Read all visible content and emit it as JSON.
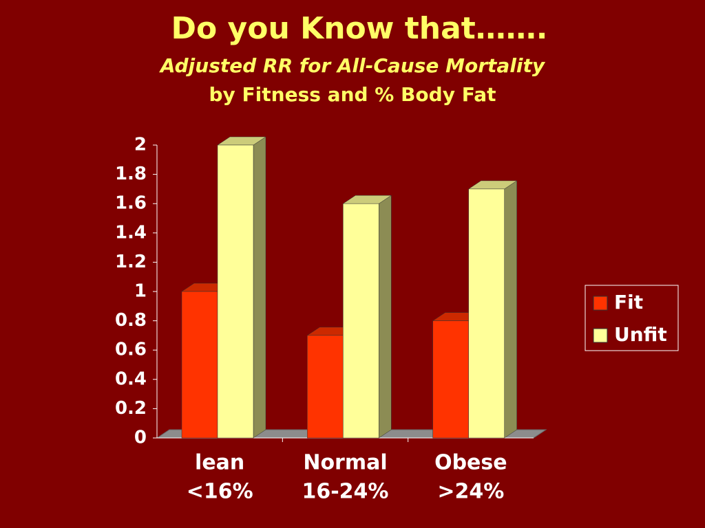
{
  "chart_data": {
    "type": "bar3d",
    "title": "Do you Know that…….",
    "subtitle": [
      "Adjusted RR for All-Cause Mortality",
      "by Fitness and % Body Fat"
    ],
    "categories": [
      [
        "lean",
        "<16%"
      ],
      [
        "Normal",
        "16-24%"
      ],
      [
        "Obese",
        ">24%"
      ]
    ],
    "series": [
      {
        "name": "Fit",
        "color": "#ff3300",
        "values": [
          1,
          0.7,
          0.8
        ]
      },
      {
        "name": "Unfit",
        "color": "#ffff99",
        "values": [
          2,
          1.6,
          1.7
        ]
      }
    ],
    "ylim": [
      0,
      2
    ],
    "yticks": [
      0,
      0.2,
      0.4,
      0.6,
      0.8,
      1,
      1.2,
      1.4,
      1.6,
      1.8,
      2
    ],
    "legend": "right"
  }
}
